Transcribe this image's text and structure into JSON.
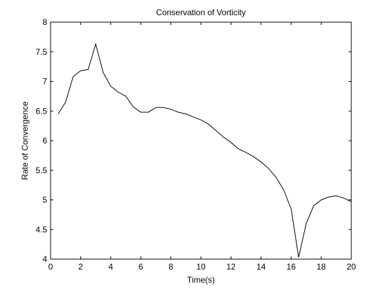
{
  "chart_data": {
    "type": "line",
    "title": "Conservation of Vorticity",
    "xlabel": "Time(s)",
    "ylabel": "Rate of Convergence",
    "xlim": [
      0,
      20
    ],
    "ylim": [
      4,
      8
    ],
    "xticks": [
      0,
      2,
      4,
      6,
      8,
      10,
      12,
      14,
      16,
      18,
      20
    ],
    "yticks": [
      4,
      4.5,
      5,
      5.5,
      6,
      6.5,
      7,
      7.5,
      8
    ],
    "grid": false,
    "line_color": "#000000",
    "series": [
      {
        "x": [
          0.5,
          1.0,
          1.5,
          2.0,
          2.5,
          3.0,
          3.5,
          4.0,
          4.5,
          5.0,
          5.5,
          6.0,
          6.5,
          7.0,
          7.5,
          8.0,
          8.5,
          9.0,
          9.5,
          10.0,
          10.5,
          11.0,
          11.5,
          12.0,
          12.5,
          13.0,
          13.5,
          14.0,
          14.5,
          15.0,
          15.5,
          16.0,
          16.5,
          17.0,
          17.5,
          18.0,
          18.5,
          19.0,
          19.5,
          20.0
        ],
        "y": [
          6.45,
          6.65,
          7.08,
          7.18,
          7.2,
          7.63,
          7.15,
          6.92,
          6.82,
          6.75,
          6.57,
          6.48,
          6.48,
          6.56,
          6.56,
          6.53,
          6.48,
          6.45,
          6.4,
          6.35,
          6.28,
          6.17,
          6.06,
          5.97,
          5.86,
          5.8,
          5.73,
          5.64,
          5.53,
          5.38,
          5.17,
          4.85,
          4.03,
          4.6,
          4.9,
          5.0,
          5.05,
          5.07,
          5.03,
          4.97
        ]
      }
    ]
  }
}
